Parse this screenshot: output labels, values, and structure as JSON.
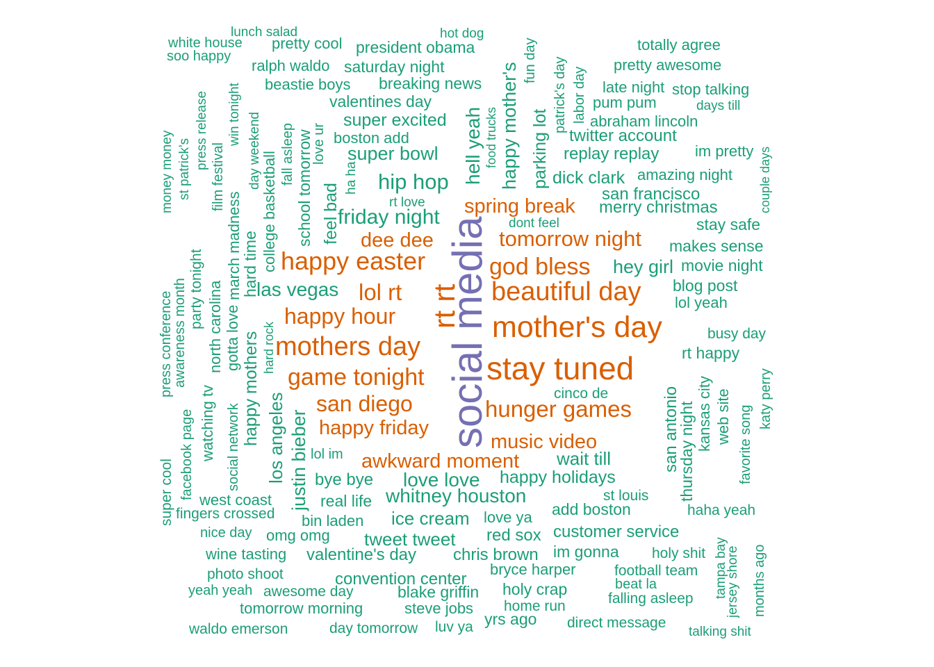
{
  "colors": {
    "teal": "#1B9E77",
    "orange": "#D95F02",
    "purple": "#7570B3"
  },
  "words": [
    {
      "t": "social media",
      "c": "purple"
    },
    {
      "t": "stay tuned",
      "c": "orange"
    },
    {
      "t": "mother's day",
      "c": "orange"
    },
    {
      "t": "rt rt",
      "c": "orange"
    },
    {
      "t": "beautiful day",
      "c": "orange"
    },
    {
      "t": "mothers day",
      "c": "orange"
    },
    {
      "t": "happy easter",
      "c": "orange"
    },
    {
      "t": "god bless",
      "c": "orange"
    },
    {
      "t": "game tonight",
      "c": "orange"
    },
    {
      "t": "hunger games",
      "c": "orange"
    },
    {
      "t": "lol rt",
      "c": "orange"
    },
    {
      "t": "happy hour",
      "c": "orange"
    },
    {
      "t": "san diego",
      "c": "orange"
    },
    {
      "t": "tomorrow night",
      "c": "orange"
    },
    {
      "t": "spring break",
      "c": "orange"
    },
    {
      "t": "dee dee",
      "c": "orange"
    },
    {
      "t": "happy friday",
      "c": "orange"
    },
    {
      "t": "awkward moment",
      "c": "orange"
    },
    {
      "t": "music video",
      "c": "orange"
    },
    {
      "t": "lunch salad",
      "c": "teal"
    },
    {
      "t": "hot dog",
      "c": "teal"
    },
    {
      "t": "white house",
      "c": "teal"
    },
    {
      "t": "pretty cool",
      "c": "teal"
    },
    {
      "t": "president obama",
      "c": "teal"
    },
    {
      "t": "totally agree",
      "c": "teal"
    },
    {
      "t": "soo happy",
      "c": "teal"
    },
    {
      "t": "ralph waldo",
      "c": "teal"
    },
    {
      "t": "saturday night",
      "c": "teal"
    },
    {
      "t": "pretty awesome",
      "c": "teal"
    },
    {
      "t": "beastie boys",
      "c": "teal"
    },
    {
      "t": "breaking news",
      "c": "teal"
    },
    {
      "t": "late night",
      "c": "teal"
    },
    {
      "t": "stop talking",
      "c": "teal"
    },
    {
      "t": "valentines day",
      "c": "teal"
    },
    {
      "t": "pum pum",
      "c": "teal"
    },
    {
      "t": "days till",
      "c": "teal"
    },
    {
      "t": "super excited",
      "c": "teal"
    },
    {
      "t": "abraham lincoln",
      "c": "teal"
    },
    {
      "t": "boston add",
      "c": "teal"
    },
    {
      "t": "twitter account",
      "c": "teal"
    },
    {
      "t": "super bowl",
      "c": "teal"
    },
    {
      "t": "replay replay",
      "c": "teal"
    },
    {
      "t": "im pretty",
      "c": "teal"
    },
    {
      "t": "dick clark",
      "c": "teal"
    },
    {
      "t": "amazing night",
      "c": "teal"
    },
    {
      "t": "hip hop",
      "c": "teal"
    },
    {
      "t": "san francisco",
      "c": "teal"
    },
    {
      "t": "rt love",
      "c": "teal"
    },
    {
      "t": "merry christmas",
      "c": "teal"
    },
    {
      "t": "friday night",
      "c": "teal"
    },
    {
      "t": "dont feel",
      "c": "teal"
    },
    {
      "t": "stay safe",
      "c": "teal"
    },
    {
      "t": "makes sense",
      "c": "teal"
    },
    {
      "t": "hey girl",
      "c": "teal"
    },
    {
      "t": "movie night",
      "c": "teal"
    },
    {
      "t": "las vegas",
      "c": "teal"
    },
    {
      "t": "blog post",
      "c": "teal"
    },
    {
      "t": "lol yeah",
      "c": "teal"
    },
    {
      "t": "busy day",
      "c": "teal"
    },
    {
      "t": "rt happy",
      "c": "teal"
    },
    {
      "t": "cinco de",
      "c": "teal"
    },
    {
      "t": "lol im",
      "c": "teal"
    },
    {
      "t": "wait till",
      "c": "teal"
    },
    {
      "t": "bye bye",
      "c": "teal"
    },
    {
      "t": "love love",
      "c": "teal"
    },
    {
      "t": "happy holidays",
      "c": "teal"
    },
    {
      "t": "west coast",
      "c": "teal"
    },
    {
      "t": "real life",
      "c": "teal"
    },
    {
      "t": "whitney houston",
      "c": "teal"
    },
    {
      "t": "st louis",
      "c": "teal"
    },
    {
      "t": "fingers crossed",
      "c": "teal"
    },
    {
      "t": "add boston",
      "c": "teal"
    },
    {
      "t": "bin laden",
      "c": "teal"
    },
    {
      "t": "ice cream",
      "c": "teal"
    },
    {
      "t": "love ya",
      "c": "teal"
    },
    {
      "t": "haha yeah",
      "c": "teal"
    },
    {
      "t": "nice day",
      "c": "teal"
    },
    {
      "t": "omg omg",
      "c": "teal"
    },
    {
      "t": "tweet tweet",
      "c": "teal"
    },
    {
      "t": "red sox",
      "c": "teal"
    },
    {
      "t": "customer service",
      "c": "teal"
    },
    {
      "t": "wine tasting",
      "c": "teal"
    },
    {
      "t": "valentine's day",
      "c": "teal"
    },
    {
      "t": "chris brown",
      "c": "teal"
    },
    {
      "t": "im gonna",
      "c": "teal"
    },
    {
      "t": "holy shit",
      "c": "teal"
    },
    {
      "t": "photo shoot",
      "c": "teal"
    },
    {
      "t": "bryce harper",
      "c": "teal"
    },
    {
      "t": "football team",
      "c": "teal"
    },
    {
      "t": "convention center",
      "c": "teal"
    },
    {
      "t": "beat la",
      "c": "teal"
    },
    {
      "t": "yeah yeah",
      "c": "teal"
    },
    {
      "t": "awesome day",
      "c": "teal"
    },
    {
      "t": "blake griffin",
      "c": "teal"
    },
    {
      "t": "holy crap",
      "c": "teal"
    },
    {
      "t": "falling asleep",
      "c": "teal"
    },
    {
      "t": "tomorrow morning",
      "c": "teal"
    },
    {
      "t": "steve jobs",
      "c": "teal"
    },
    {
      "t": "home run",
      "c": "teal"
    },
    {
      "t": "yrs ago",
      "c": "teal"
    },
    {
      "t": "direct message",
      "c": "teal"
    },
    {
      "t": "waldo emerson",
      "c": "teal"
    },
    {
      "t": "day tomorrow",
      "c": "teal"
    },
    {
      "t": "luv ya",
      "c": "teal"
    },
    {
      "t": "talking shit",
      "c": "teal"
    },
    {
      "t": "hell yeah",
      "c": "teal"
    },
    {
      "t": "happy mother's",
      "c": "teal"
    },
    {
      "t": "parking lot",
      "c": "teal"
    },
    {
      "t": "fun day",
      "c": "teal"
    },
    {
      "t": "patrick's day",
      "c": "teal"
    },
    {
      "t": "labor day",
      "c": "teal"
    },
    {
      "t": "food trucks",
      "c": "teal"
    },
    {
      "t": "win tonight",
      "c": "teal"
    },
    {
      "t": "press release",
      "c": "teal"
    },
    {
      "t": "st patrick's",
      "c": "teal"
    },
    {
      "t": "money money",
      "c": "teal"
    },
    {
      "t": "film festival",
      "c": "teal"
    },
    {
      "t": "day weekend",
      "c": "teal"
    },
    {
      "t": "fall asleep",
      "c": "teal"
    },
    {
      "t": "school tomorrow",
      "c": "teal"
    },
    {
      "t": "love ur",
      "c": "teal"
    },
    {
      "t": "feel bad",
      "c": "teal"
    },
    {
      "t": "ha ha",
      "c": "teal"
    },
    {
      "t": "college basketball",
      "c": "teal"
    },
    {
      "t": "march madness",
      "c": "teal"
    },
    {
      "t": "hard time",
      "c": "teal"
    },
    {
      "t": "couple days",
      "c": "teal"
    },
    {
      "t": "party tonight",
      "c": "teal"
    },
    {
      "t": "awareness month",
      "c": "teal"
    },
    {
      "t": "press conference",
      "c": "teal"
    },
    {
      "t": "north carolina",
      "c": "teal"
    },
    {
      "t": "gotta love",
      "c": "teal"
    },
    {
      "t": "happy mothers",
      "c": "teal"
    },
    {
      "t": "hard rock",
      "c": "teal"
    },
    {
      "t": "watching tv",
      "c": "teal"
    },
    {
      "t": "social network",
      "c": "teal"
    },
    {
      "t": "los angeles",
      "c": "teal"
    },
    {
      "t": "justin bieber",
      "c": "teal"
    },
    {
      "t": "facebook page",
      "c": "teal"
    },
    {
      "t": "super cool",
      "c": "teal"
    },
    {
      "t": "san antonio",
      "c": "teal"
    },
    {
      "t": "thursday night",
      "c": "teal"
    },
    {
      "t": "kansas city",
      "c": "teal"
    },
    {
      "t": "web site",
      "c": "teal"
    },
    {
      "t": "favorite song",
      "c": "teal"
    },
    {
      "t": "katy perry",
      "c": "teal"
    },
    {
      "t": "tampa bay",
      "c": "teal"
    },
    {
      "t": "jersey shore",
      "c": "teal"
    },
    {
      "t": "months ago",
      "c": "teal"
    }
  ]
}
